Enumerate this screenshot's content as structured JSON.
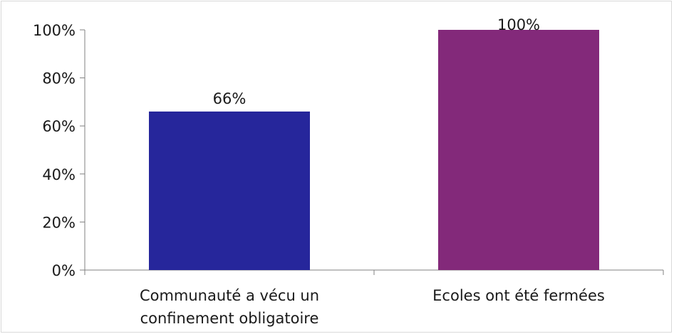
{
  "chart_data": {
    "type": "bar",
    "categories": [
      [
        "Communauté a vécu un",
        "confinement obligatoire"
      ],
      [
        "Ecoles ont été fermées"
      ]
    ],
    "values": [
      66,
      100
    ],
    "data_labels": [
      "66%",
      "100%"
    ],
    "colors": [
      "#26269b",
      "#83297a"
    ],
    "ylim": [
      0,
      100
    ],
    "yticks": [
      0,
      20,
      40,
      60,
      80,
      100
    ],
    "ytick_labels": [
      "0%",
      "20%",
      "40%",
      "60%",
      "80%",
      "100%"
    ],
    "grid": false,
    "legend": "none"
  }
}
